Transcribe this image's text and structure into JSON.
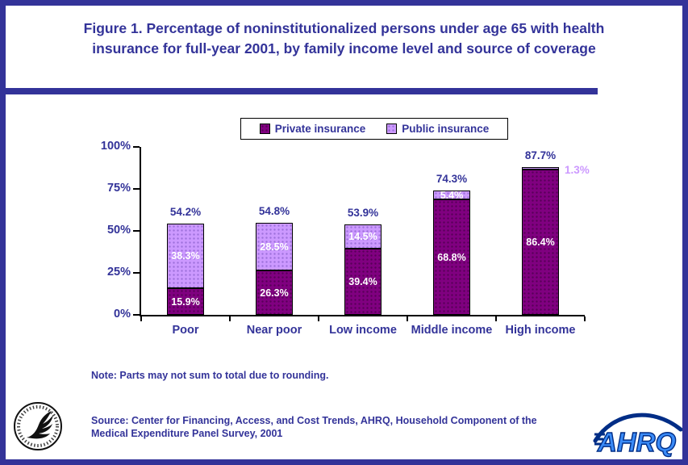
{
  "colors": {
    "frame_blue": "#333399",
    "private_purple": "#800080",
    "public_lavender": "#CC99FF",
    "axis_black": "#000000",
    "bar_label_white": "#FFFFFF"
  },
  "title": {
    "line1": "Figure 1. Percentage of noninstitutionalized persons under age 65 with health",
    "line2": "insurance for full-year 2001, by family income level and source of coverage"
  },
  "legend": {
    "items": [
      {
        "label": "Private insurance",
        "color": "#800080"
      },
      {
        "label": "Public insurance",
        "color": "#CC99FF"
      }
    ]
  },
  "chart_data": {
    "type": "bar",
    "stacked": true,
    "categories": [
      "Poor",
      "Near poor",
      "Low income",
      "Middle income",
      "High income"
    ],
    "series": [
      {
        "name": "Private insurance",
        "color": "#800080",
        "values": [
          15.9,
          26.3,
          39.4,
          68.8,
          86.4
        ],
        "labels": [
          "15.9%",
          "26.3%",
          "39.4%",
          "68.8%",
          "86.4%"
        ]
      },
      {
        "name": "Public insurance",
        "color": "#CC99FF",
        "values": [
          38.3,
          28.5,
          14.5,
          5.4,
          1.3
        ],
        "labels": [
          "38.3%",
          "28.5%",
          "14.5%",
          "5.4%",
          "1.3%"
        ]
      }
    ],
    "totals": [
      "54.2%",
      "54.8%",
      "53.9%",
      "74.3%",
      "87.7%"
    ],
    "y_ticks": [
      {
        "label": "100%",
        "value": 100
      },
      {
        "label": "75%",
        "value": 75
      },
      {
        "label": "50%",
        "value": 50
      },
      {
        "label": "25%",
        "value": 25
      },
      {
        "label": "0%",
        "value": 0
      }
    ],
    "ylim": [
      0,
      100
    ],
    "grid": false,
    "legend_position": "top"
  },
  "note": "Note: Parts may not sum to total due to rounding.",
  "source": {
    "line1": "Source: Center for Financing, Access, and Cost Trends, AHRQ, Household Component of the",
    "line2": "Medical Expenditure Panel Survey, 2001"
  },
  "logos": {
    "ahrq_text": "AHRQ"
  }
}
